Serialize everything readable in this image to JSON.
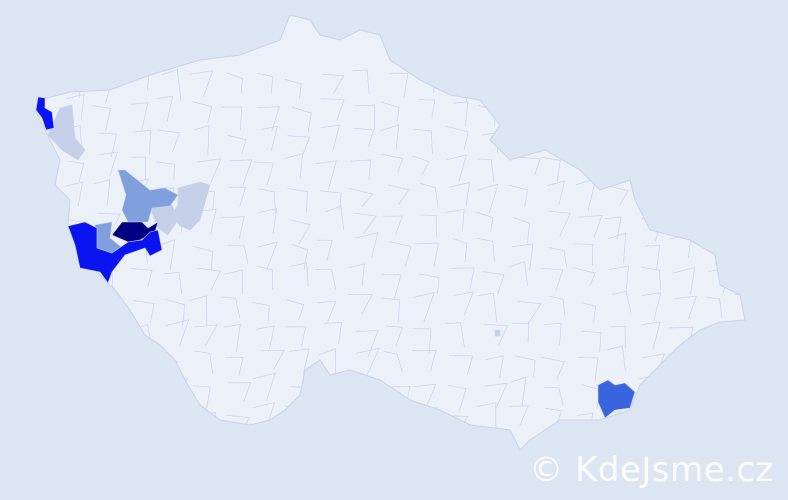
{
  "watermark": "© KdeJsme.cz",
  "colors": {
    "background": "#dce5f2",
    "default_region": "#ecf0f8",
    "border": "#c8d2ea",
    "level_1": "#c5d0e8",
    "level_2": "#7fa0dc",
    "level_3": "#3a64dc",
    "level_4": "#0a14f0",
    "level_5": "#000080"
  }
}
